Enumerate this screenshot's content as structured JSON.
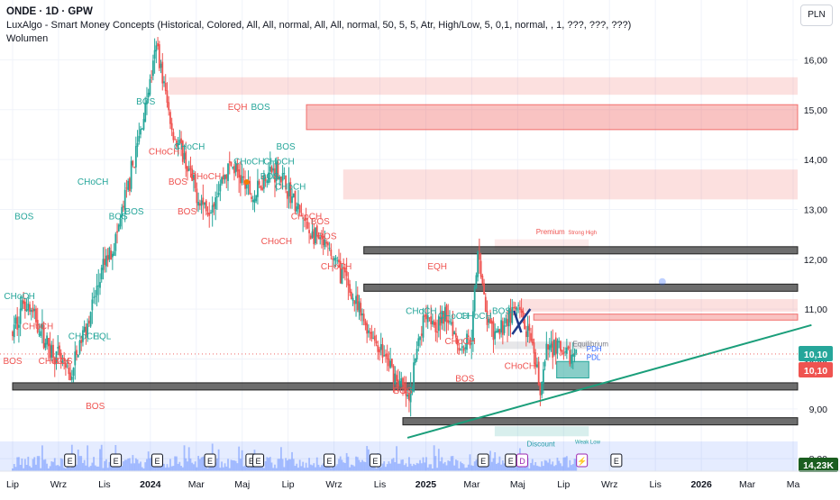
{
  "header": {
    "symbol": "ONDE · 1D · GPW",
    "indicator": "LuxAlgo - Smart Money Concepts (Historical, Colored, All, All, normal, All, All, normal, 50, 5, 5, Atr, High/Low, 5, 0,1, normal, , 1, ???, ???, ???)",
    "volume_label": "Wolumen",
    "currency_button": "PLN"
  },
  "colors": {
    "bull": "#26a69a",
    "bear": "#ef5350",
    "axis_text": "#131722",
    "trend": "#1a9e7a",
    "grid": "#f0f3fa"
  },
  "chart_data": {
    "type": "candlestick",
    "y_axis": {
      "min": 7.75,
      "max": 17.2,
      "ticks": [
        8.0,
        9.0,
        10.0,
        11.0,
        12.0,
        13.0,
        14.0,
        15.0,
        16.0
      ],
      "tick_labels": [
        "8,00",
        "9,00",
        "10,00",
        "11,00",
        "12,00",
        "13,00",
        "14,00",
        "15,00",
        "16,00"
      ]
    },
    "x_axis": {
      "labels": [
        "Lip",
        "Wrz",
        "Lis",
        "2024",
        "Mar",
        "Maj",
        "Lip",
        "Wrz",
        "Lis",
        "2025",
        "Mar",
        "Maj",
        "Lip",
        "Wrz",
        "Lis",
        "2026",
        "Mar",
        "Ma"
      ],
      "months_index": [
        0,
        2,
        4,
        6,
        8,
        10,
        12,
        14,
        16,
        18,
        20,
        22,
        24,
        26,
        28,
        30,
        32,
        34
      ]
    },
    "price_path_monthly": [
      {
        "m": 0.0,
        "v": 10.5
      },
      {
        "m": 0.5,
        "v": 11.2
      },
      {
        "m": 1.0,
        "v": 10.8
      },
      {
        "m": 1.5,
        "v": 10.3
      },
      {
        "m": 2.0,
        "v": 10.0
      },
      {
        "m": 2.5,
        "v": 9.6
      },
      {
        "m": 3.0,
        "v": 10.4
      },
      {
        "m": 3.5,
        "v": 11.1
      },
      {
        "m": 4.0,
        "v": 11.9
      },
      {
        "m": 4.5,
        "v": 12.4
      },
      {
        "m": 5.0,
        "v": 13.4
      },
      {
        "m": 5.5,
        "v": 14.4
      },
      {
        "m": 6.0,
        "v": 15.6
      },
      {
        "m": 6.3,
        "v": 16.3
      },
      {
        "m": 6.7,
        "v": 15.2
      },
      {
        "m": 7.0,
        "v": 14.5
      },
      {
        "m": 7.5,
        "v": 14.0
      },
      {
        "m": 8.0,
        "v": 13.3
      },
      {
        "m": 8.5,
        "v": 13.0
      },
      {
        "m": 9.0,
        "v": 13.5
      },
      {
        "m": 9.5,
        "v": 13.9
      },
      {
        "m": 10.0,
        "v": 13.6
      },
      {
        "m": 10.5,
        "v": 13.2
      },
      {
        "m": 11.0,
        "v": 13.7
      },
      {
        "m": 11.5,
        "v": 13.8
      },
      {
        "m": 12.0,
        "v": 13.4
      },
      {
        "m": 12.5,
        "v": 12.9
      },
      {
        "m": 13.0,
        "v": 12.5
      },
      {
        "m": 13.5,
        "v": 12.3
      },
      {
        "m": 14.0,
        "v": 12.0
      },
      {
        "m": 14.5,
        "v": 11.6
      },
      {
        "m": 15.0,
        "v": 11.0
      },
      {
        "m": 15.5,
        "v": 10.6
      },
      {
        "m": 16.0,
        "v": 10.2
      },
      {
        "m": 16.5,
        "v": 9.8
      },
      {
        "m": 17.0,
        "v": 9.4
      },
      {
        "m": 17.3,
        "v": 9.1
      },
      {
        "m": 17.6,
        "v": 10.2
      },
      {
        "m": 18.0,
        "v": 11.0
      },
      {
        "m": 18.5,
        "v": 10.7
      },
      {
        "m": 19.0,
        "v": 10.9
      },
      {
        "m": 19.5,
        "v": 10.2
      },
      {
        "m": 20.0,
        "v": 10.5
      },
      {
        "m": 20.3,
        "v": 12.3
      },
      {
        "m": 20.6,
        "v": 10.9
      },
      {
        "m": 21.0,
        "v": 10.4
      },
      {
        "m": 21.5,
        "v": 10.8
      },
      {
        "m": 22.0,
        "v": 11.0
      },
      {
        "m": 22.5,
        "v": 10.4
      },
      {
        "m": 23.0,
        "v": 9.4
      },
      {
        "m": 23.3,
        "v": 10.2
      },
      {
        "m": 23.7,
        "v": 10.3
      },
      {
        "m": 24.0,
        "v": 10.0
      },
      {
        "m": 24.6,
        "v": 10.1
      }
    ],
    "current_price": "10,10",
    "last_close_label": "10,10",
    "volume_label": "14,23K",
    "horizontal_levels": [
      {
        "from_m": 15.3,
        "value": 12.18
      },
      {
        "from_m": 15.3,
        "value": 11.43
      },
      {
        "from_m": 0.0,
        "value": 9.45
      },
      {
        "from_m": 17.0,
        "value": 8.75
      }
    ],
    "zones": [
      {
        "type": "supply",
        "from_m": 6.8,
        "top": 15.65,
        "bottom": 15.3
      },
      {
        "type": "supply-strong",
        "from_m": 12.8,
        "top": 15.1,
        "bottom": 14.6
      },
      {
        "type": "supply",
        "from_m": 14.4,
        "top": 13.8,
        "bottom": 13.2
      },
      {
        "type": "supply",
        "from_m": 22.2,
        "top": 11.2,
        "bottom": 10.95
      },
      {
        "type": "supply-strong",
        "from_m": 22.7,
        "top": 10.9,
        "bottom": 10.78
      },
      {
        "type": "premium",
        "from_m": 21.0,
        "to_m": 25.1,
        "top": 12.4,
        "bottom": 12.18
      },
      {
        "type": "discount",
        "from_m": 21.0,
        "to_m": 25.1,
        "top": 8.65,
        "bottom": 8.45
      },
      {
        "type": "demand",
        "from_m": 23.7,
        "to_m": 25.1,
        "top": 9.95,
        "bottom": 9.62
      },
      {
        "type": "equilibrium",
        "from_m": 21.0,
        "to_m": 25.1,
        "top": 10.35,
        "bottom": 10.2
      }
    ],
    "structure_labels": [
      {
        "text": "BOS",
        "m": 0.5,
        "v": 12.8,
        "kind": "bull"
      },
      {
        "text": "CHoCH",
        "m": 0.3,
        "v": 11.2,
        "kind": "bull"
      },
      {
        "text": "CHoCH",
        "m": 1.1,
        "v": 10.6,
        "kind": "bear"
      },
      {
        "text": "BOS",
        "m": 0.0,
        "v": 9.9,
        "kind": "bear"
      },
      {
        "text": "CHoCH",
        "m": 1.8,
        "v": 9.9,
        "kind": "bear"
      },
      {
        "text": "BOS",
        "m": 2.2,
        "v": 9.9,
        "kind": "bear"
      },
      {
        "text": "CHoCH",
        "m": 3.1,
        "v": 10.4,
        "kind": "bull"
      },
      {
        "text": "EQL",
        "m": 3.9,
        "v": 10.4,
        "kind": "bull"
      },
      {
        "text": "BOS",
        "m": 3.6,
        "v": 9.0,
        "kind": "bear"
      },
      {
        "text": "CHoCH",
        "m": 3.5,
        "v": 13.5,
        "kind": "bull"
      },
      {
        "text": "BOS",
        "m": 4.6,
        "v": 12.8,
        "kind": "bull"
      },
      {
        "text": "BOS",
        "m": 5.3,
        "v": 12.9,
        "kind": "bull"
      },
      {
        "text": "BOS",
        "m": 5.8,
        "v": 15.1,
        "kind": "bull"
      },
      {
        "text": "CHoCH",
        "m": 6.6,
        "v": 14.1,
        "kind": "bear"
      },
      {
        "text": "CHoCH",
        "m": 7.7,
        "v": 14.2,
        "kind": "bull"
      },
      {
        "text": "BOS",
        "m": 7.2,
        "v": 13.5,
        "kind": "bear"
      },
      {
        "text": "CHoCH",
        "m": 8.4,
        "v": 13.6,
        "kind": "bear"
      },
      {
        "text": "BOS",
        "m": 7.6,
        "v": 12.9,
        "kind": "bear"
      },
      {
        "text": "EQH",
        "m": 9.8,
        "v": 15.0,
        "kind": "bear"
      },
      {
        "text": "BOS",
        "m": 10.8,
        "v": 15.0,
        "kind": "bull"
      },
      {
        "text": "CHoCH",
        "m": 10.3,
        "v": 13.9,
        "kind": "bull"
      },
      {
        "text": "BOS",
        "m": 11.9,
        "v": 14.2,
        "kind": "bull"
      },
      {
        "text": "CHoCH",
        "m": 11.6,
        "v": 13.9,
        "kind": "bull"
      },
      {
        "text": "BOS",
        "m": 11.2,
        "v": 13.6,
        "kind": "bull"
      },
      {
        "text": "CHoCH",
        "m": 12.1,
        "v": 13.4,
        "kind": "bull"
      },
      {
        "text": "CHoCH",
        "m": 12.8,
        "v": 12.8,
        "kind": "bear"
      },
      {
        "text": "BOS",
        "m": 13.4,
        "v": 12.7,
        "kind": "bear"
      },
      {
        "text": "CHoCH",
        "m": 11.5,
        "v": 12.3,
        "kind": "bear"
      },
      {
        "text": "BOS",
        "m": 13.7,
        "v": 12.4,
        "kind": "bear"
      },
      {
        "text": "CHoCH",
        "m": 14.1,
        "v": 11.8,
        "kind": "bear"
      },
      {
        "text": "EQH",
        "m": 18.5,
        "v": 11.8,
        "kind": "bear"
      },
      {
        "text": "CHoCH",
        "m": 17.8,
        "v": 10.9,
        "kind": "bull"
      },
      {
        "text": "CHoCH",
        "m": 19.2,
        "v": 10.8,
        "kind": "bull"
      },
      {
        "text": "CHoCH",
        "m": 20.2,
        "v": 10.8,
        "kind": "bull"
      },
      {
        "text": "CHoCH",
        "m": 19.5,
        "v": 10.3,
        "kind": "bear"
      },
      {
        "text": "BOS",
        "m": 21.3,
        "v": 10.9,
        "kind": "bull"
      },
      {
        "text": "CHoCH",
        "m": 22.1,
        "v": 9.8,
        "kind": "bear"
      },
      {
        "text": "BOS",
        "m": 17.0,
        "v": 9.3,
        "kind": "bear"
      },
      {
        "text": "BOS",
        "m": 19.7,
        "v": 9.55,
        "kind": "bear"
      }
    ],
    "annotations": [
      {
        "text": "Premium",
        "m": 22.8,
        "v": 12.5
      },
      {
        "text": "Strong High",
        "m": 24.2,
        "v": 12.5
      },
      {
        "text": "Equilibrium",
        "m": 24.4,
        "v": 10.25
      },
      {
        "text": "PDH",
        "m": 25.0,
        "v": 10.15
      },
      {
        "text": "PDL",
        "m": 25.0,
        "v": 9.98
      },
      {
        "text": "Discount",
        "m": 22.4,
        "v": 8.25
      },
      {
        "text": "Weak Low",
        "m": 24.5,
        "v": 8.3
      }
    ],
    "trendline": {
      "from": {
        "m": 17.2,
        "v": 8.42
      },
      "to": {
        "m": 34.8,
        "v": 10.68
      }
    },
    "event_markers": [
      {
        "m": 2.5,
        "label": "E"
      },
      {
        "m": 4.5,
        "label": "E"
      },
      {
        "m": 6.3,
        "label": "E"
      },
      {
        "m": 8.6,
        "label": "E"
      },
      {
        "m": 10.4,
        "label": "E"
      },
      {
        "m": 10.7,
        "label": "E"
      },
      {
        "m": 13.8,
        "label": "E"
      },
      {
        "m": 15.8,
        "label": "E"
      },
      {
        "m": 20.5,
        "label": "E"
      },
      {
        "m": 21.7,
        "label": "E"
      },
      {
        "m": 22.2,
        "label": "D"
      },
      {
        "m": 24.8,
        "label": "⚡"
      },
      {
        "m": 26.3,
        "label": "E"
      }
    ],
    "grid": true,
    "legend_position": "top-left"
  }
}
